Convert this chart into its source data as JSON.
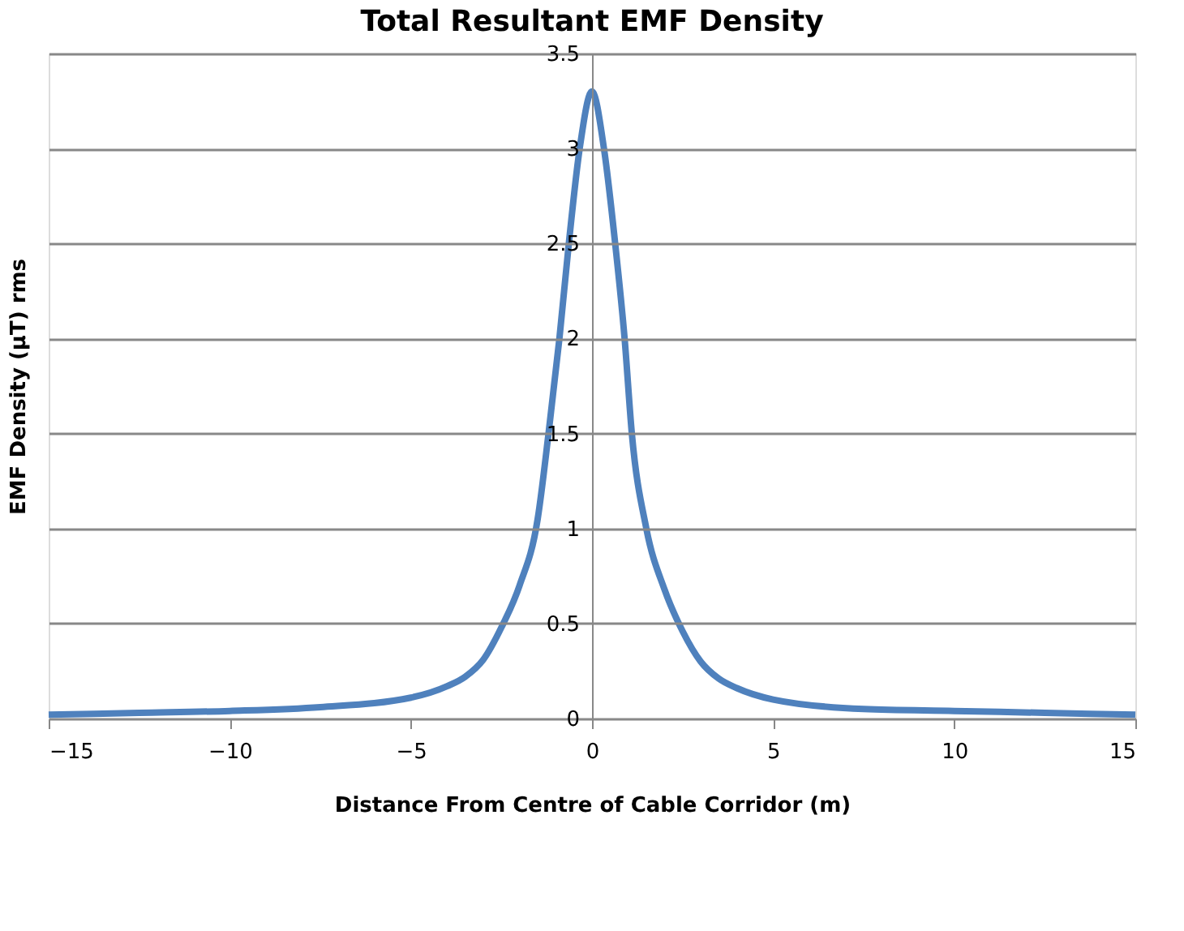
{
  "chart_data": {
    "type": "line",
    "title": "Total Resultant EMF Density",
    "xlabel": "Distance From Centre of Cable Corridor (m)",
    "ylabel": "EMF Density (µT) rms",
    "series": [
      {
        "color": "#4f81bd",
        "x": [
          -15,
          -12.5,
          -10,
          -7.5,
          -5,
          -4,
          -3.5,
          -3,
          -2.5,
          -2,
          -1.5,
          -1.2,
          -0.9,
          -0.64,
          -0.34,
          0,
          0.33,
          0.64,
          0.9,
          1.1,
          1.5,
          2,
          2.5,
          3,
          3.5,
          4,
          5,
          7.5,
          10,
          12.5,
          15
        ],
        "values": [
          0.02,
          0.03,
          0.04,
          0.06,
          0.11,
          0.17,
          0.22,
          0.31,
          0.48,
          0.7,
          1.05,
          1.5,
          2,
          2.5,
          3,
          3.3,
          3,
          2.5,
          2,
          1.5,
          1.0,
          0.68,
          0.46,
          0.3,
          0.21,
          0.16,
          0.1,
          0.05,
          0.04,
          0.03,
          0.02
        ]
      }
    ],
    "xlim": [
      -15,
      15
    ],
    "xticks": [
      -15,
      -10,
      -5,
      0,
      5,
      10,
      15
    ],
    "ylim": [
      0,
      3.5
    ],
    "yticks": [
      0,
      0.5,
      1,
      1.5,
      2,
      2.5,
      3,
      3.5
    ],
    "grid": "y",
    "marker": "none",
    "line_style": "solid",
    "legend": false
  }
}
